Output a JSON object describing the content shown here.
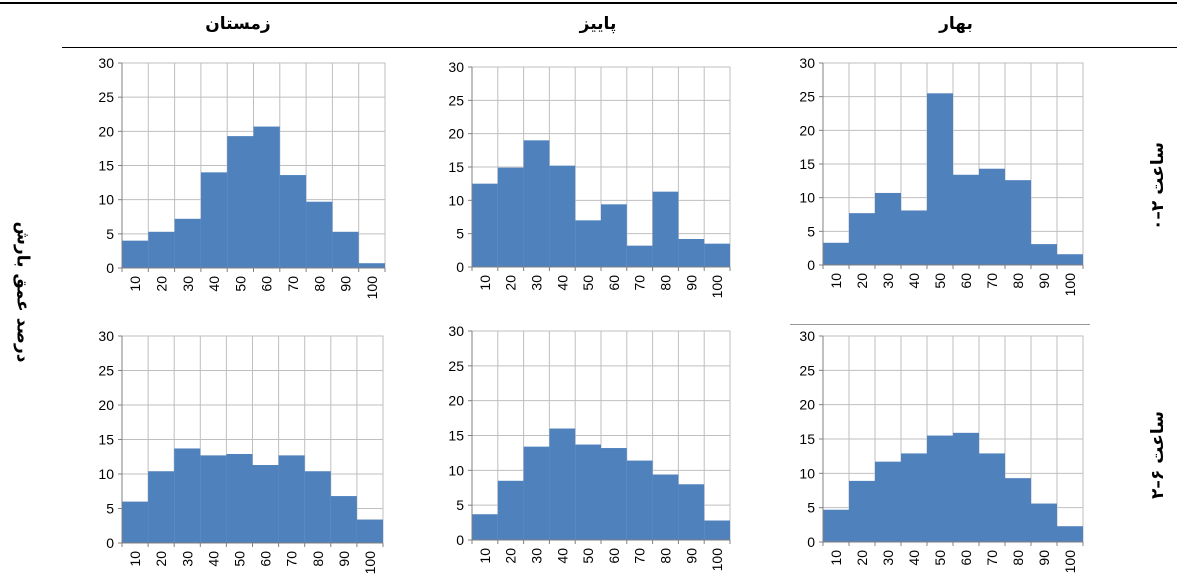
{
  "columns": [
    "زمستان",
    "پاییز",
    "بهار"
  ],
  "rows": [
    "۰–۲ ساعت",
    "۲–۶ ساعت"
  ],
  "ylabel": "درصد عمق بارش",
  "colors": {
    "bar": "#4f81bd",
    "grid": "#bfbfbf",
    "axis": "#000000"
  },
  "chart_data": [
    {
      "type": "bar",
      "season": "زمستان",
      "duration": "۰–۲ ساعت",
      "categories": [
        "10",
        "20",
        "30",
        "40",
        "50",
        "60",
        "70",
        "80",
        "90",
        "100"
      ],
      "values": [
        4,
        5.3,
        7.2,
        14,
        19.3,
        20.7,
        13.6,
        9.7,
        5.3,
        0.7
      ],
      "ylim": [
        0,
        30
      ],
      "yticks": [
        0,
        5,
        10,
        15,
        20,
        25,
        30
      ],
      "grid": true
    },
    {
      "type": "bar",
      "season": "پاییز",
      "duration": "۰–۲ ساعت",
      "categories": [
        "10",
        "20",
        "30",
        "40",
        "50",
        "60",
        "70",
        "80",
        "90",
        "100"
      ],
      "values": [
        12.5,
        14.9,
        19,
        15.2,
        7,
        9.4,
        3.2,
        11.3,
        4.2,
        3.5
      ],
      "ylim": [
        0,
        30
      ],
      "yticks": [
        0,
        5,
        10,
        15,
        20,
        25,
        30
      ],
      "grid": true
    },
    {
      "type": "bar",
      "season": "بهار",
      "duration": "۰–۲ ساعت",
      "categories": [
        "10",
        "20",
        "30",
        "40",
        "50",
        "60",
        "70",
        "80",
        "90",
        "100"
      ],
      "values": [
        3.3,
        7.7,
        10.7,
        8.1,
        25.5,
        13.4,
        14.3,
        12.6,
        3.1,
        1.6
      ],
      "ylim": [
        0,
        30
      ],
      "yticks": [
        0,
        5,
        10,
        15,
        20,
        25,
        30
      ],
      "grid": true
    },
    {
      "type": "bar",
      "season": "زمستان",
      "duration": "۲–۶ ساعت",
      "categories": [
        "10",
        "20",
        "30",
        "40",
        "50",
        "60",
        "70",
        "80",
        "90",
        "100"
      ],
      "values": [
        6,
        10.4,
        13.7,
        12.7,
        12.9,
        11.3,
        12.7,
        10.4,
        6.8,
        3.4
      ],
      "ylim": [
        0,
        30
      ],
      "yticks": [
        0,
        5,
        10,
        15,
        20,
        25,
        30
      ],
      "grid": true
    },
    {
      "type": "bar",
      "season": "پاییز",
      "duration": "۲–۶ ساعت",
      "categories": [
        "10",
        "20",
        "30",
        "40",
        "50",
        "60",
        "70",
        "80",
        "90",
        "100"
      ],
      "values": [
        3.7,
        8.5,
        13.4,
        16,
        13.7,
        13.2,
        11.4,
        9.4,
        8,
        2.8
      ],
      "ylim": [
        0,
        30
      ],
      "yticks": [
        0,
        5,
        10,
        15,
        20,
        25,
        30
      ],
      "grid": true
    },
    {
      "type": "bar",
      "season": "بهار",
      "duration": "۲–۶ ساعت",
      "categories": [
        "10",
        "20",
        "30",
        "40",
        "50",
        "60",
        "70",
        "80",
        "90",
        "100"
      ],
      "values": [
        4.7,
        8.9,
        11.7,
        12.9,
        15.5,
        15.9,
        12.9,
        9.3,
        5.6,
        2.3
      ],
      "ylim": [
        0,
        30
      ],
      "yticks": [
        0,
        5,
        10,
        15,
        20,
        25,
        30
      ],
      "grid": true
    }
  ]
}
